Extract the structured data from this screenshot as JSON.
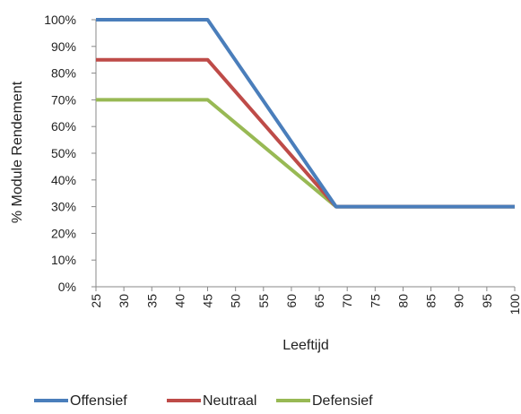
{
  "chart_data": {
    "type": "line",
    "x": [
      25,
      45,
      68,
      100
    ],
    "series": [
      {
        "name": "Offensief",
        "color": "#4a7ebb",
        "values": [
          100,
          100,
          30,
          30
        ]
      },
      {
        "name": "Neutraal",
        "color": "#be4b48",
        "values": [
          85,
          85,
          30,
          30
        ]
      },
      {
        "name": "Defensief",
        "color": "#98b954",
        "values": [
          70,
          70,
          30,
          30
        ]
      }
    ],
    "xticks": [
      "25",
      "30",
      "35",
      "40",
      "45",
      "50",
      "55",
      "60",
      "65",
      "70",
      "75",
      "80",
      "85",
      "90",
      "95",
      "100"
    ],
    "yticks": [
      "0%",
      "10%",
      "20%",
      "30%",
      "40%",
      "50%",
      "60%",
      "70%",
      "80%",
      "90%",
      "100%"
    ],
    "xlabel": "Leeftijd",
    "ylabel": "% Module Rendement",
    "xlim": [
      25,
      100
    ],
    "ylim": [
      0,
      100
    ],
    "grid": false,
    "legend_position": "bottom"
  }
}
